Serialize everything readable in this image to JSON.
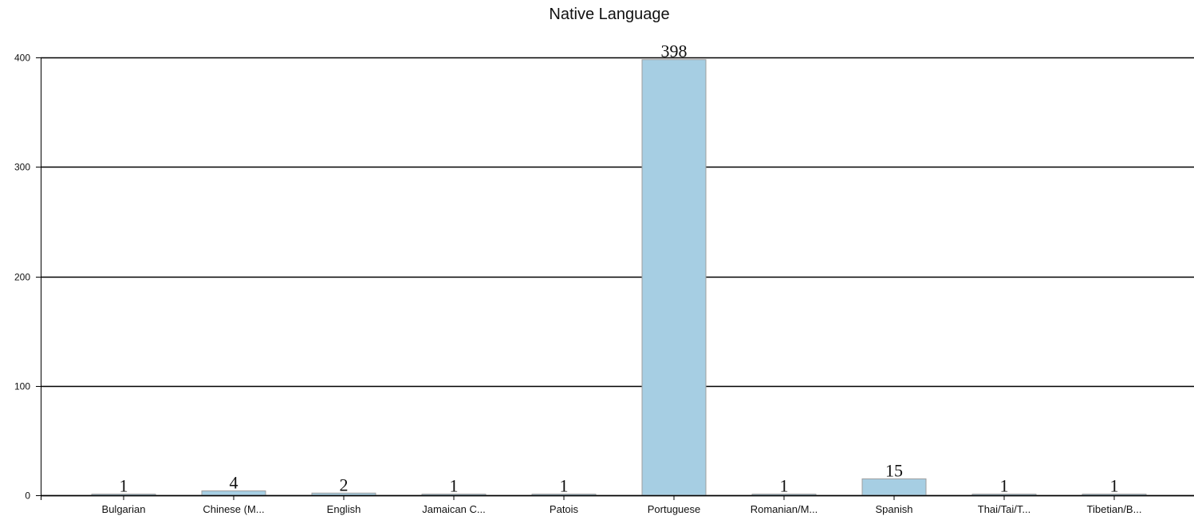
{
  "chart_data": {
    "type": "bar",
    "title": "Native Language",
    "xlabel": "",
    "ylabel": "",
    "categories": [
      "Bulgarian",
      "Chinese (M...",
      "English",
      "Jamaican C...",
      "Patois",
      "Portuguese",
      "Romanian/M...",
      "Spanish",
      "Thai/Tai/T...",
      "Tibetian/B..."
    ],
    "values": [
      1,
      4,
      2,
      1,
      1,
      398,
      1,
      15,
      1,
      1
    ],
    "ylim": [
      0,
      400
    ],
    "yticks": [
      "0",
      "100",
      "200",
      "300",
      "400"
    ],
    "grid": true,
    "legend": "none",
    "colors": {
      "bar_fill": "#a6cee3",
      "bar_stroke": "#9e9e9e",
      "grid": "#000000",
      "axis": "#000000",
      "text": "#111111"
    }
  }
}
